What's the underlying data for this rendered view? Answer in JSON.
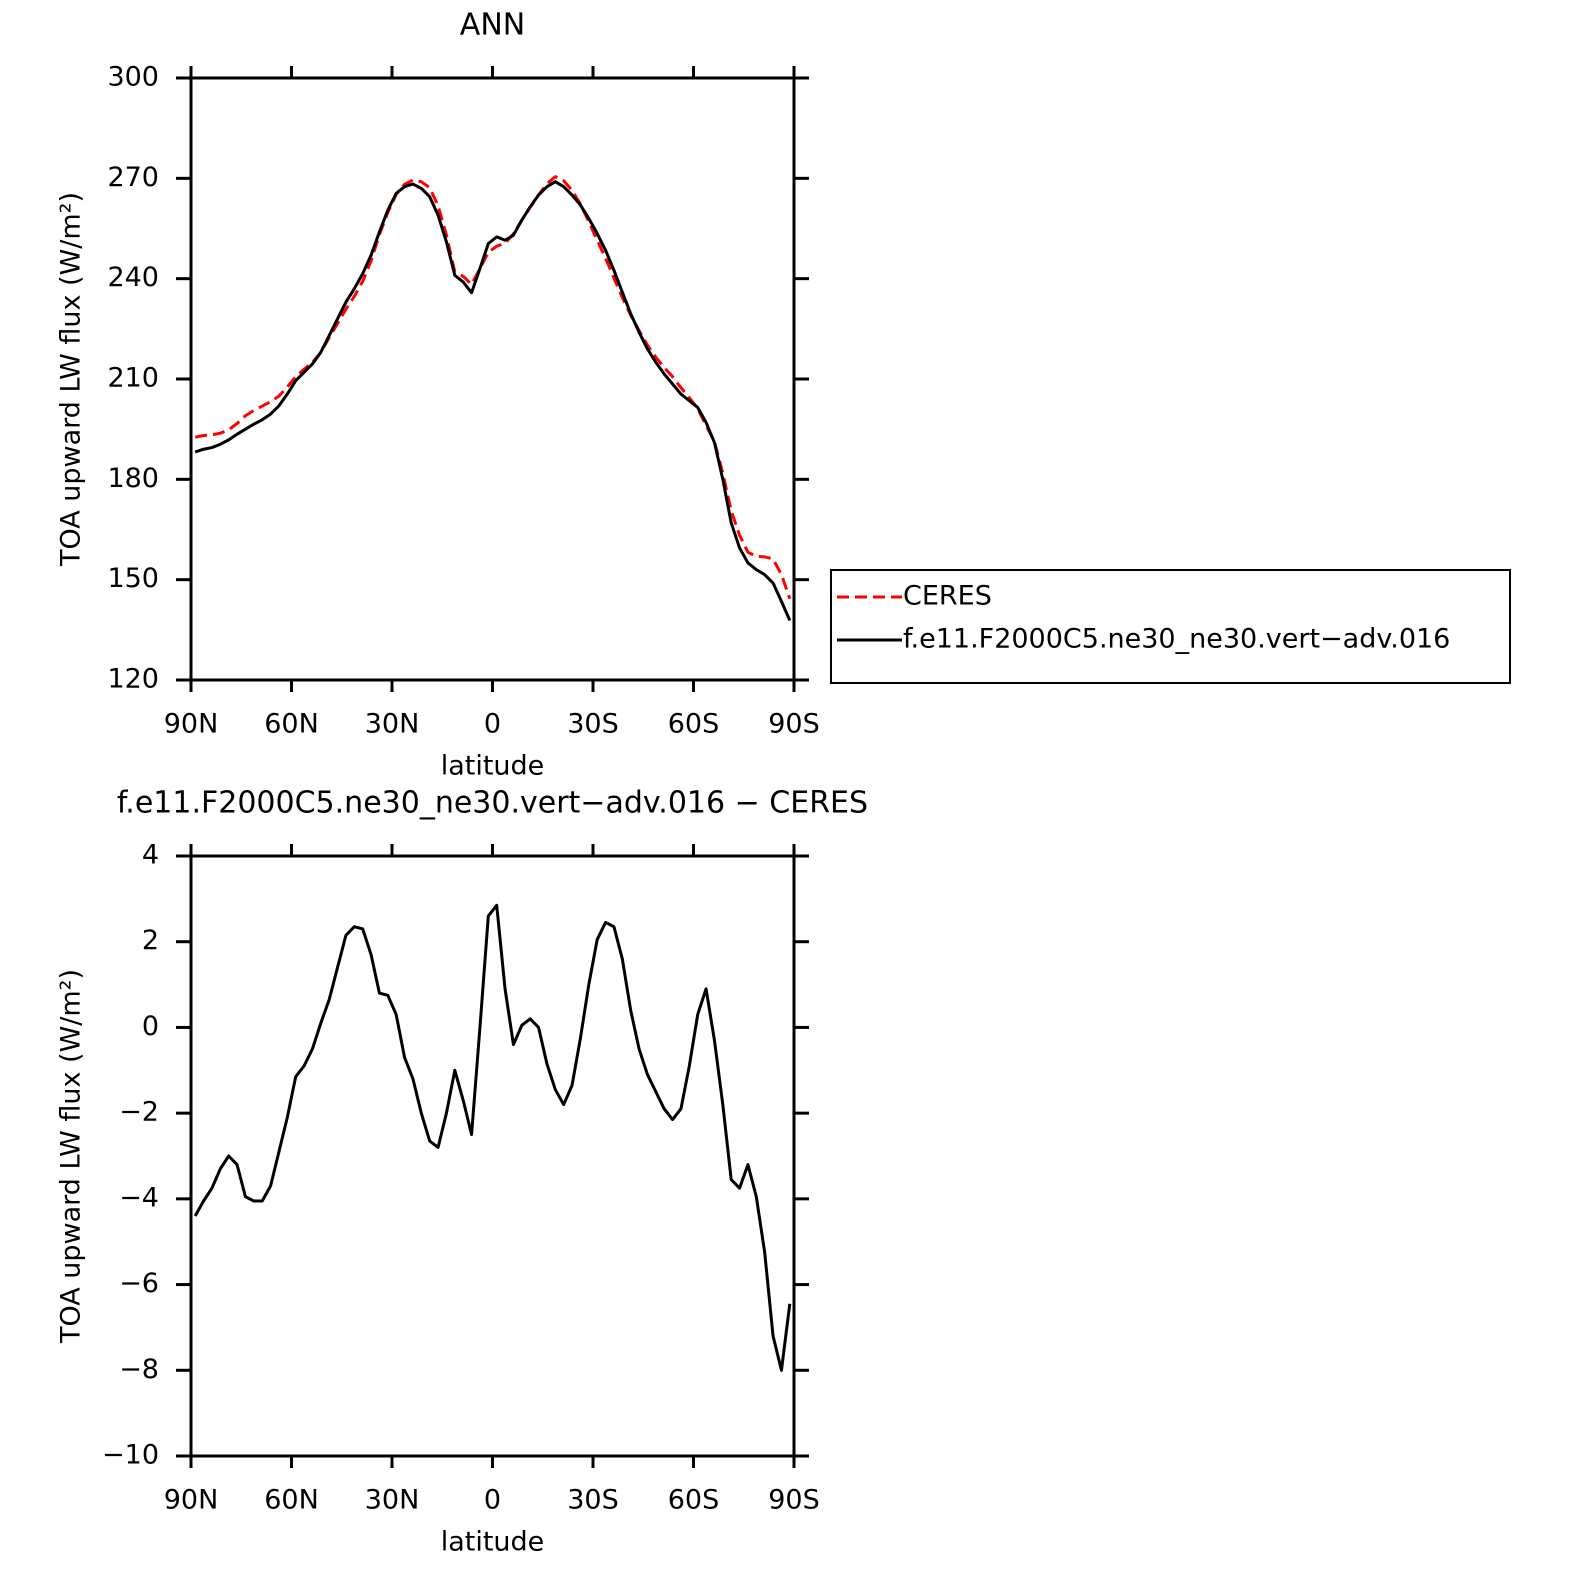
{
  "chart_data": [
    {
      "type": "line",
      "title": "ANN",
      "xlabel": "latitude",
      "ylabel": "TOA upward LW flux (W/m²)",
      "xlim": [
        90,
        -90
      ],
      "xticks": [
        {
          "value": 90,
          "label": "90N"
        },
        {
          "value": 60,
          "label": "60N"
        },
        {
          "value": 30,
          "label": "30N"
        },
        0,
        {
          "value": -30,
          "label": "30S"
        },
        {
          "value": -60,
          "label": "60S"
        },
        {
          "value": -90,
          "label": "90S"
        }
      ],
      "ylim": [
        120,
        300
      ],
      "yticks": [
        120,
        150,
        180,
        210,
        240,
        270,
        300
      ],
      "legend": "outside right",
      "x": [
        88.75,
        86.25,
        83.75,
        81.25,
        78.75,
        76.25,
        73.75,
        71.25,
        68.75,
        66.25,
        63.75,
        61.25,
        58.75,
        56.25,
        53.75,
        51.25,
        48.75,
        46.25,
        43.75,
        41.25,
        38.75,
        36.25,
        33.75,
        31.25,
        28.75,
        26.25,
        23.75,
        21.25,
        18.75,
        16.25,
        13.75,
        11.25,
        8.75,
        6.25,
        3.75,
        1.25,
        -1.25,
        -3.75,
        -6.25,
        -8.75,
        -11.25,
        -13.75,
        -16.25,
        -18.75,
        -21.25,
        -23.75,
        -26.25,
        -28.75,
        -31.25,
        -33.75,
        -36.25,
        -38.75,
        -41.25,
        -43.75,
        -46.25,
        -48.75,
        -51.25,
        -53.75,
        -56.25,
        -58.75,
        -61.25,
        -63.75,
        -66.25,
        -68.75,
        -71.25,
        -73.75,
        -76.25,
        -78.75,
        -81.25,
        -83.75,
        -86.25,
        -88.75
      ],
      "series": [
        {
          "name": "CERES",
          "color": "#ff0000",
          "linestyle": "dashed",
          "values": [
            192.6,
            193.1,
            193.3,
            193.8,
            194.8,
            196.7,
            199.0,
            200.6,
            201.9,
            203.2,
            204.9,
            207.6,
            210.7,
            212.9,
            215.0,
            217.9,
            222.4,
            226.6,
            230.9,
            234.7,
            239.2,
            245.3,
            253.2,
            259.8,
            265.2,
            268.2,
            269.5,
            269.0,
            267.2,
            261.8,
            253.0,
            242.0,
            240.7,
            238.3,
            243.0,
            247.9,
            249.7,
            250.6,
            253.4,
            257.5,
            261.3,
            265.0,
            268.4,
            270.5,
            269.3,
            266.4,
            262.3,
            257.0,
            251.5,
            246.1,
            240.2,
            234.4,
            229.1,
            224.5,
            220.1,
            216.5,
            213.4,
            210.7,
            207.4,
            204.4,
            201.2,
            196.1,
            191.3,
            181.8,
            170.6,
            163.3,
            158.2,
            157.0,
            156.8,
            156.2,
            151.5,
            144.3
          ]
        },
        {
          "name": "f.e11.F2000C5.ne30_ne30.vert−adv.016",
          "color": "#000000",
          "linestyle": "solid",
          "values": [
            188.2,
            189.0,
            189.5,
            190.5,
            191.8,
            193.5,
            195.0,
            196.5,
            197.8,
            199.5,
            202.0,
            205.5,
            209.5,
            212.0,
            214.5,
            218.0,
            223.0,
            228.0,
            233.0,
            237.0,
            241.5,
            247.0,
            254.0,
            260.5,
            265.5,
            267.5,
            268.3,
            267.0,
            264.5,
            259.0,
            251.0,
            241.0,
            239.0,
            235.8,
            243.0,
            250.5,
            252.5,
            251.5,
            253.0,
            257.5,
            261.5,
            265.0,
            267.5,
            269.0,
            267.5,
            265.0,
            262.0,
            258.0,
            253.5,
            248.5,
            242.5,
            236.0,
            229.5,
            224.0,
            219.0,
            215.0,
            211.5,
            208.5,
            205.5,
            203.5,
            201.5,
            197.0,
            191.0,
            180.0,
            167.0,
            159.5,
            155.0,
            153.0,
            151.5,
            149.0,
            143.5,
            137.8
          ]
        }
      ]
    },
    {
      "type": "line",
      "title": "f.e11.F2000C5.ne30_ne30.vert−adv.016 − CERES",
      "xlabel": "latitude",
      "ylabel": "TOA upward LW flux (W/m²)",
      "xlim": [
        90,
        -90
      ],
      "xticks": [
        {
          "value": 90,
          "label": "90N"
        },
        {
          "value": 60,
          "label": "60N"
        },
        {
          "value": 30,
          "label": "30N"
        },
        0,
        {
          "value": -30,
          "label": "30S"
        },
        {
          "value": -60,
          "label": "60S"
        },
        {
          "value": -90,
          "label": "90S"
        }
      ],
      "ylim": [
        -10,
        4
      ],
      "yticks": [
        {
          "value": -10,
          "label": "−10"
        },
        {
          "value": -8,
          "label": "−8"
        },
        {
          "value": -6,
          "label": "−6"
        },
        {
          "value": -4,
          "label": "−4"
        },
        {
          "value": -2,
          "label": "−2"
        },
        0,
        2,
        4
      ],
      "x": [
        88.75,
        86.25,
        83.75,
        81.25,
        78.75,
        76.25,
        73.75,
        71.25,
        68.75,
        66.25,
        63.75,
        61.25,
        58.75,
        56.25,
        53.75,
        51.25,
        48.75,
        46.25,
        43.75,
        41.25,
        38.75,
        36.25,
        33.75,
        31.25,
        28.75,
        26.25,
        23.75,
        21.25,
        18.75,
        16.25,
        13.75,
        11.25,
        8.75,
        6.25,
        3.75,
        1.25,
        -1.25,
        -3.75,
        -6.25,
        -8.75,
        -11.25,
        -13.75,
        -16.25,
        -18.75,
        -21.25,
        -23.75,
        -26.25,
        -28.75,
        -31.25,
        -33.75,
        -36.25,
        -38.75,
        -41.25,
        -43.75,
        -46.25,
        -48.75,
        -51.25,
        -53.75,
        -56.25,
        -58.75,
        -61.25,
        -63.75,
        -66.25,
        -68.75,
        -71.25,
        -73.75,
        -76.25,
        -78.75,
        -81.25,
        -83.75,
        -86.25,
        -88.75
      ],
      "series": [
        {
          "color": "#000000",
          "linestyle": "solid",
          "values": [
            -4.4,
            -4.05,
            -3.75,
            -3.3,
            -3.0,
            -3.2,
            -3.95,
            -4.05,
            -4.05,
            -3.7,
            -2.9,
            -2.1,
            -1.15,
            -0.9,
            -0.5,
            0.1,
            0.65,
            1.4,
            2.15,
            2.35,
            2.3,
            1.7,
            0.8,
            0.75,
            0.3,
            -0.7,
            -1.2,
            -2.0,
            -2.65,
            -2.8,
            -2.0,
            -1.0,
            -1.7,
            -2.5,
            0.0,
            2.6,
            2.85,
            0.9,
            -0.4,
            0.05,
            0.2,
            0.0,
            -0.85,
            -1.45,
            -1.8,
            -1.35,
            -0.25,
            1.0,
            2.05,
            2.45,
            2.35,
            1.6,
            0.4,
            -0.5,
            -1.1,
            -1.5,
            -1.9,
            -2.15,
            -1.9,
            -0.9,
            0.3,
            0.9,
            -0.3,
            -1.8,
            -3.55,
            -3.75,
            -3.2,
            -3.95,
            -5.25,
            -7.2,
            -8.0,
            -6.45
          ]
        }
      ]
    }
  ]
}
